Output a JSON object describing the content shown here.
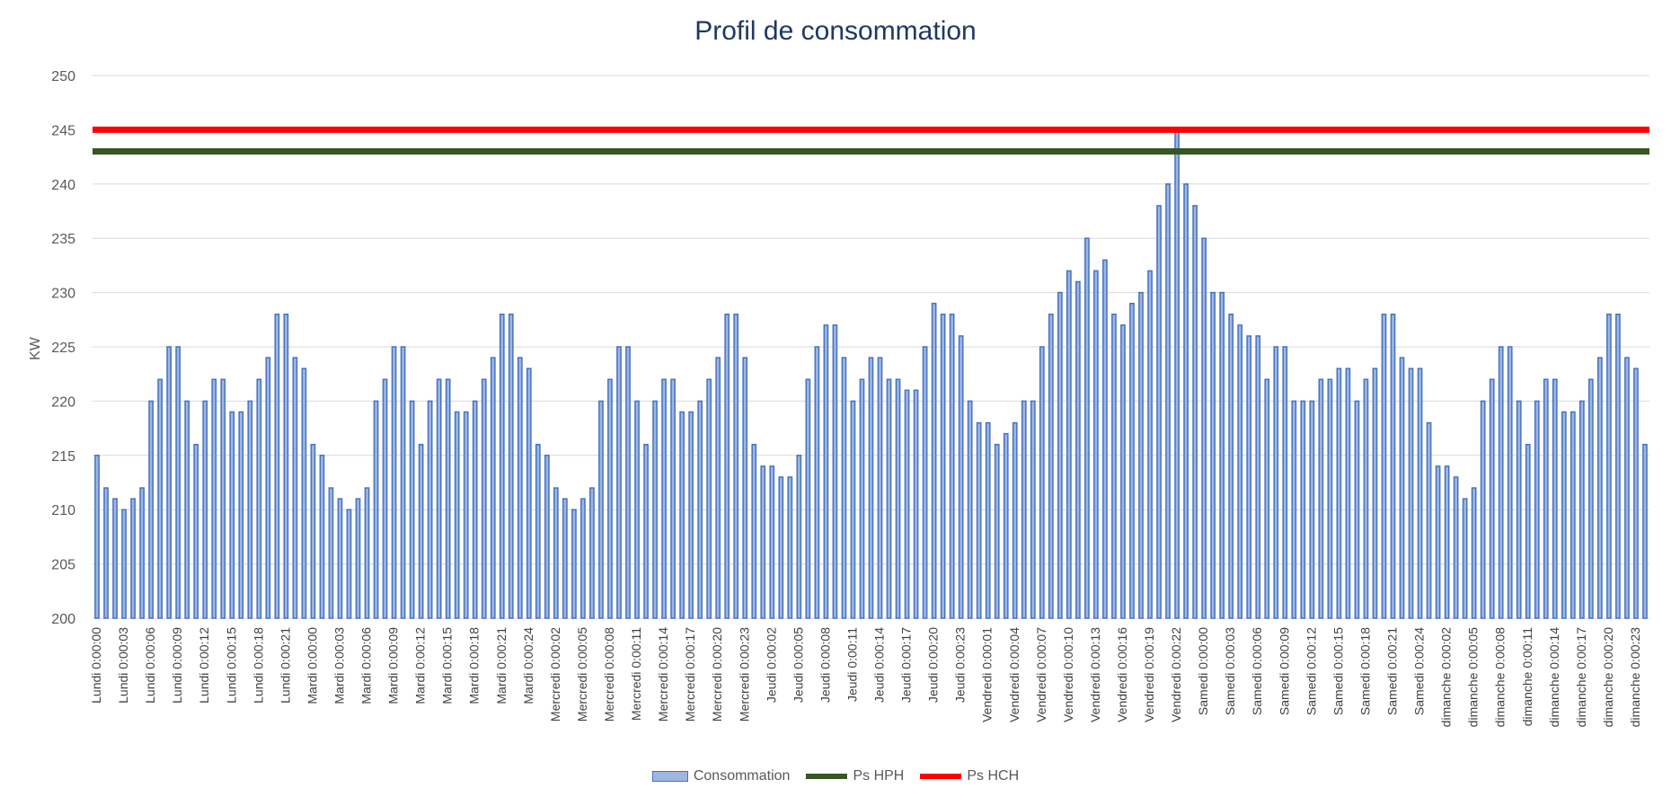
{
  "chart_data": {
    "type": "bar",
    "title": "Profil de consommation",
    "ylabel": "KW",
    "xlabel": "",
    "ylim": [
      200,
      250
    ],
    "yticks": [
      200,
      205,
      210,
      215,
      220,
      225,
      230,
      235,
      240,
      245,
      250
    ],
    "grid": true,
    "legend_placement": "bottom",
    "x_tick_labels": [
      "Lundi 0:00:00",
      "Lundi 0:00:03",
      "Lundi 0:00:06",
      "Lundi 0:00:09",
      "Lundi 0:00:12",
      "Lundi 0:00:15",
      "Lundi 0:00:18",
      "Lundi 0:00:21",
      "Mardi 0:00:00",
      "Mardi 0:00:03",
      "Mardi 0:00:06",
      "Mardi 0:00:09",
      "Mardi 0:00:12",
      "Mardi 0:00:15",
      "Mardi 0:00:18",
      "Mardi 0:00:21",
      "Mardi 0:00:24",
      "Mercredi 0:00:02",
      "Mercredi 0:00:05",
      "Mercredi 0:00:08",
      "Mercredi 0:00:11",
      "Mercredi 0:00:14",
      "Mercredi 0:00:17",
      "Mercredi 0:00:20",
      "Mercredi 0:00:23",
      "Jeudi 0:00:02",
      "Jeudi 0:00:05",
      "Jeudi 0:00:08",
      "Jeudi 0:00:11",
      "Jeudi 0:00:14",
      "Jeudi 0:00:17",
      "Jeudi 0:00:20",
      "Jeudi 0:00:23",
      "Vendredi 0:00:01",
      "Vendredi 0:00:04",
      "Vendredi 0:00:07",
      "Vendredi 0:00:10",
      "Vendredi 0:00:13",
      "Vendredi 0:00:16",
      "Vendredi 0:00:19",
      "Vendredi 0:00:22",
      "Samedi 0:00:00",
      "Samedi 0:00:03",
      "Samedi 0:00:06",
      "Samedi 0:00:09",
      "Samedi 0:00:12",
      "Samedi 0:00:15",
      "Samedi 0:00:18",
      "Samedi 0:00:21",
      "Samedi 0:00:24",
      "dimanche 0:00:02",
      "dimanche 0:00:05",
      "dimanche 0:00:08",
      "dimanche 0:00:11",
      "dimanche 0:00:14",
      "dimanche 0:00:17",
      "dimanche 0:00:20",
      "dimanche 0:00:23"
    ],
    "series": [
      {
        "name": "Consommation",
        "kind": "bar",
        "color": "#4472c4",
        "fill": "#9fb6e0",
        "values": [
          215,
          212,
          211,
          210,
          211,
          212,
          220,
          222,
          225,
          225,
          220,
          216,
          220,
          222,
          222,
          219,
          219,
          220,
          222,
          224,
          228,
          228,
          224,
          223,
          216,
          215,
          212,
          211,
          210,
          211,
          212,
          220,
          222,
          225,
          225,
          220,
          216,
          220,
          222,
          222,
          219,
          219,
          220,
          222,
          224,
          228,
          228,
          224,
          223,
          216,
          215,
          212,
          211,
          210,
          211,
          212,
          220,
          222,
          225,
          225,
          220,
          216,
          220,
          222,
          222,
          219,
          219,
          220,
          222,
          224,
          228,
          228,
          224,
          216,
          214,
          214,
          213,
          213,
          215,
          222,
          225,
          227,
          227,
          224,
          220,
          222,
          224,
          224,
          222,
          222,
          221,
          221,
          225,
          229,
          228,
          228,
          226,
          220,
          218,
          218,
          216,
          217,
          218,
          220,
          220,
          225,
          228,
          230,
          232,
          231,
          235,
          232,
          233,
          228,
          227,
          229,
          230,
          232,
          238,
          240,
          245,
          240,
          238,
          235,
          230,
          230,
          228,
          227,
          226,
          226,
          222,
          225,
          225,
          220,
          220,
          220,
          222,
          222,
          223,
          223,
          220,
          222,
          223,
          228,
          228,
          224,
          223,
          223,
          218,
          214,
          214,
          213,
          211,
          212,
          220,
          222,
          225,
          225,
          220,
          216,
          220,
          222,
          222,
          219,
          219,
          220,
          222,
          224,
          228,
          228,
          224,
          223,
          216
        ]
      },
      {
        "name": "Ps HPH",
        "kind": "line",
        "color": "#375623",
        "value": 243
      },
      {
        "name": "Ps HCH",
        "kind": "line",
        "color": "#ff0000",
        "value": 245
      }
    ]
  }
}
